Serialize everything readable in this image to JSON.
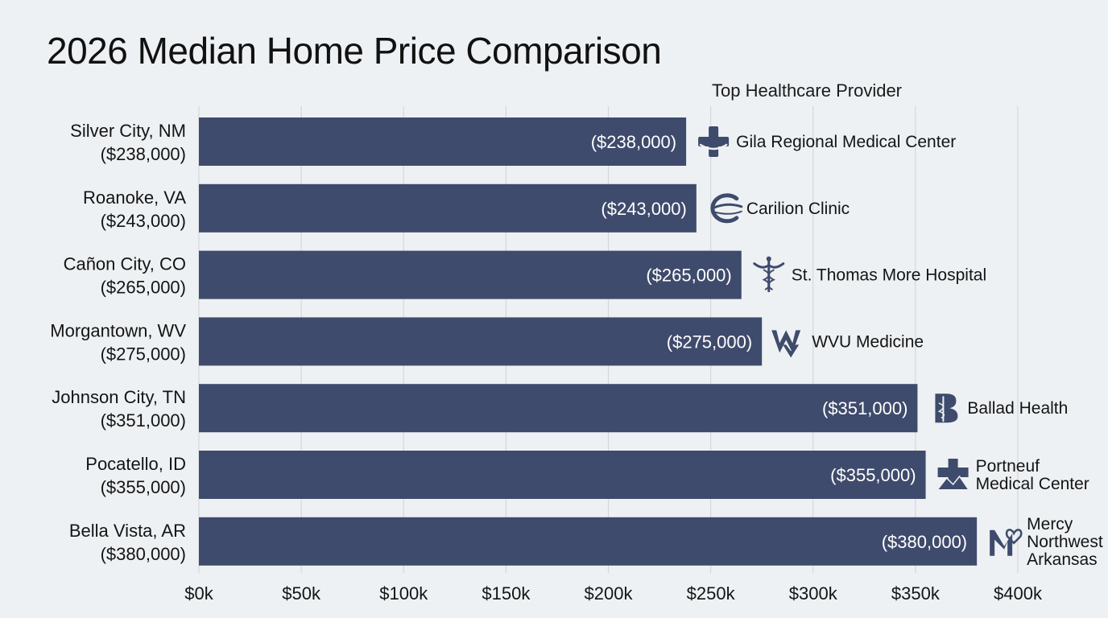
{
  "chart_data": {
    "type": "bar",
    "orientation": "horizontal",
    "title": "2026 Median Home Price Comparison",
    "provider_header": "Top Healthcare Provider",
    "categories": [
      "Silver City, NM",
      "Roanoke, VA",
      "Cañon City, CO",
      "Morgantown, WV",
      "Johnson City, TN",
      "Pocatello, ID",
      "Bella Vista, AR"
    ],
    "category_price_labels": [
      "($238,000)",
      "($243,000)",
      "($265,000)",
      "($275,000)",
      "($351,000)",
      "($355,000)",
      "($380,000)"
    ],
    "values": [
      238000,
      243000,
      265000,
      275000,
      351000,
      355000,
      380000
    ],
    "value_labels": [
      "($238,000)",
      "($243,000)",
      "($265,000)",
      "($275,000)",
      "($351,000)",
      "($355,000)",
      "($380,000)"
    ],
    "providers": [
      {
        "lines": [
          "Gila Regional Medical Center"
        ],
        "icon": "cross-handshake-icon"
      },
      {
        "lines": [
          "Carilion Clinic"
        ],
        "icon": "swoosh-c-icon"
      },
      {
        "lines": [
          "St. Thomas More Hospital"
        ],
        "icon": "caduceus-icon"
      },
      {
        "lines": [
          "WVU Medicine"
        ],
        "icon": "wv-logo-icon"
      },
      {
        "lines": [
          "Ballad Health"
        ],
        "icon": "b-staff-icon"
      },
      {
        "lines": [
          "Portneuf",
          "Medical Center"
        ],
        "icon": "cross-mountain-icon"
      },
      {
        "lines": [
          "Mercy",
          "Northwest",
          "Arkansas"
        ],
        "icon": "m-heart-icon"
      }
    ],
    "xlim": [
      0,
      400000
    ],
    "x_ticks": [
      0,
      50000,
      100000,
      150000,
      200000,
      250000,
      300000,
      350000,
      400000
    ],
    "x_tick_labels": [
      "$0k",
      "$50k",
      "$100k",
      "$150k",
      "$200k",
      "$250k",
      "$300k",
      "$350k",
      "$400k"
    ],
    "xlabel": "",
    "ylabel": "",
    "grid": true,
    "legend": "none",
    "colors": {
      "bar": "#3f4b6c",
      "background": "#eef1f3",
      "grid": "#d3d8de"
    }
  }
}
